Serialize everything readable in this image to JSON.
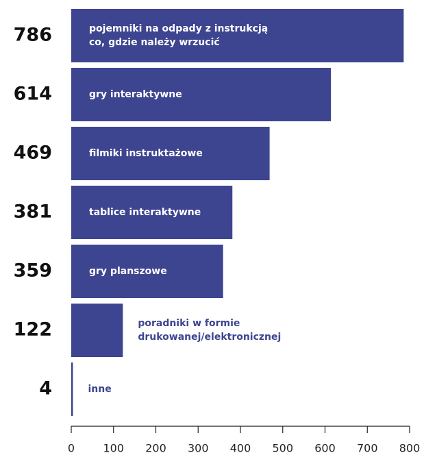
{
  "chart_data": {
    "type": "bar",
    "orientation": "horizontal",
    "categories": [
      "pojemniki na odpady z instrukcją\nco, gdzie należy wrzucić",
      "gry interaktywne",
      "filmiki instruktażowe",
      "tablice interaktywne",
      "gry planszowe",
      "poradniki w formie\ndrukowanej/elektronicznej",
      "inne"
    ],
    "values": [
      786,
      614,
      469,
      381,
      359,
      122,
      4
    ],
    "color": "#3d4590",
    "xlim": [
      0,
      800
    ],
    "xticks": [
      0,
      100,
      200,
      300,
      400,
      500,
      600,
      700,
      800
    ],
    "grid": false
  }
}
